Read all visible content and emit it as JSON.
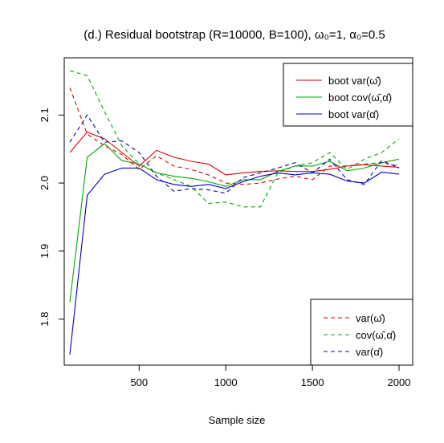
{
  "chart_data": {
    "type": "line",
    "title": "(d.) Residual bootstrap (R=10000, B=100), ω₀=1, α₀=0.5",
    "xlabel": "Sample size",
    "ylabel": "",
    "xlim": [
      100,
      2000
    ],
    "ylim": [
      1.75,
      2.17
    ],
    "xticks": [
      500,
      1000,
      1500,
      2000
    ],
    "yticks": [
      1.8,
      1.9,
      2.0,
      2.1
    ],
    "x": [
      100,
      200,
      300,
      400,
      500,
      600,
      700,
      800,
      900,
      1000,
      1100,
      1200,
      1300,
      1400,
      1500,
      1600,
      1700,
      1800,
      1900,
      2000
    ],
    "series": [
      {
        "name": "boot var(ω̂)",
        "color": "#dd0000",
        "dash": "solid",
        "values": [
          2.045,
          2.075,
          2.065,
          2.045,
          2.025,
          2.048,
          2.038,
          2.032,
          2.028,
          2.012,
          2.015,
          2.017,
          2.018,
          2.017,
          2.017,
          2.02,
          2.025,
          2.027,
          2.025,
          2.023
        ]
      },
      {
        "name": "boot cov(ω̂,α̂)",
        "color": "#00aa00",
        "dash": "solid",
        "values": [
          1.825,
          2.038,
          2.058,
          2.033,
          2.028,
          2.015,
          2.01,
          2.007,
          2.002,
          1.995,
          2.005,
          2.005,
          2.017,
          2.025,
          2.025,
          2.032,
          2.018,
          2.022,
          2.03,
          2.035
        ]
      },
      {
        "name": "boot var(α̂)",
        "color": "#0000bb",
        "dash": "solid",
        "values": [
          1.748,
          1.982,
          2.013,
          2.022,
          2.022,
          2.005,
          1.998,
          1.995,
          1.998,
          1.992,
          2.002,
          2.01,
          2.015,
          2.012,
          2.015,
          2.013,
          2.003,
          2.0,
          2.016,
          2.013
        ]
      },
      {
        "name": "var(ω̂)",
        "color": "#dd0000",
        "dash": "dashed",
        "values": [
          2.14,
          2.072,
          2.055,
          2.042,
          2.02,
          2.04,
          2.025,
          2.02,
          2.012,
          2.0,
          1.998,
          2.0,
          2.006,
          2.01,
          2.005,
          2.025,
          2.025,
          2.028,
          2.03,
          2.025
        ]
      },
      {
        "name": "cov(ω̂,α̂)",
        "color": "#00aa00",
        "dash": "dashed",
        "values": [
          2.165,
          2.158,
          2.105,
          2.055,
          2.028,
          2.015,
          2.005,
          1.995,
          1.97,
          1.972,
          1.965,
          1.965,
          2.015,
          2.025,
          2.03,
          2.045,
          2.02,
          2.035,
          2.045,
          2.065
        ]
      },
      {
        "name": "var(α̂)",
        "color": "#0000bb",
        "dash": "dashed",
        "values": [
          2.06,
          2.1,
          2.06,
          2.062,
          2.045,
          2.01,
          1.988,
          1.992,
          1.99,
          1.985,
          2.008,
          2.015,
          2.022,
          2.03,
          2.015,
          2.035,
          2.005,
          1.998,
          2.033,
          2.022
        ]
      }
    ],
    "legends": {
      "solid": {
        "position": "top-right",
        "entries": [
          {
            "label": "boot var(ω̂)",
            "color": "#dd0000"
          },
          {
            "label": "boot cov(ω̂,α̂)",
            "color": "#00aa00"
          },
          {
            "label": "boot var(α̂)",
            "color": "#0000bb"
          }
        ]
      },
      "dashed": {
        "position": "bottom-right",
        "entries": [
          {
            "label": "var(ω̂)",
            "color": "#dd0000"
          },
          {
            "label": "cov(ω̂,α̂)",
            "color": "#00aa00"
          },
          {
            "label": "var(α̂)",
            "color": "#0000bb"
          }
        ]
      }
    }
  }
}
